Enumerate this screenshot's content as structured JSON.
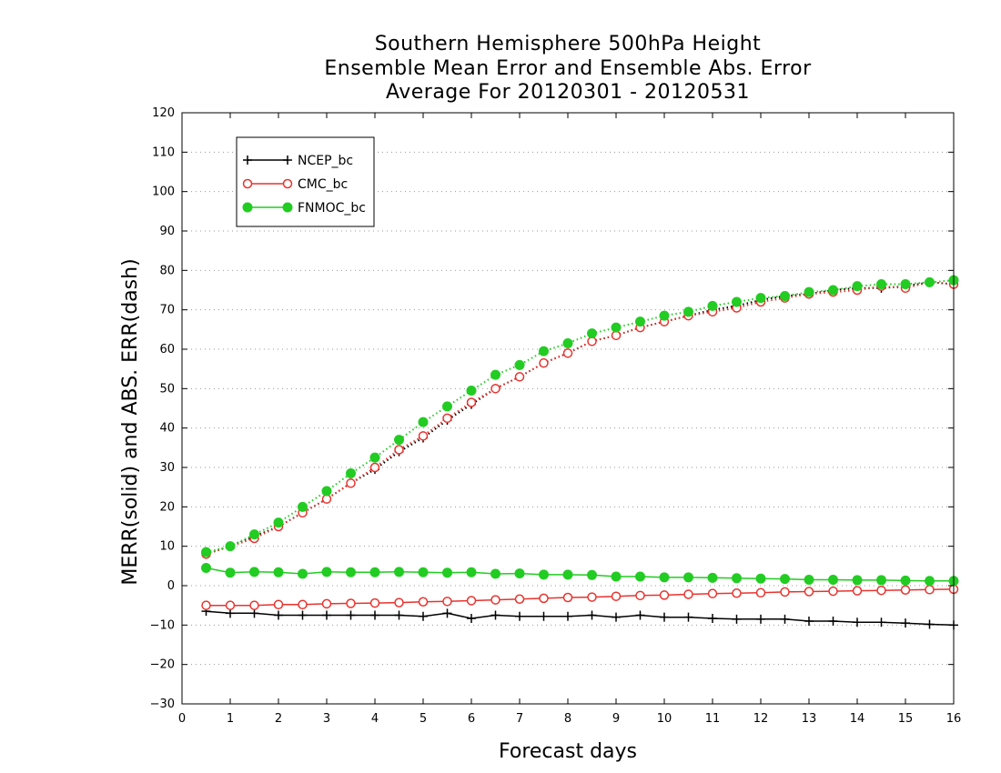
{
  "chart_data": {
    "type": "line",
    "title": [
      "Southern Hemisphere 500hPa Height",
      "Ensemble Mean Error and Ensemble Abs. Error",
      "Average For 20120301 - 20120531"
    ],
    "xlabel": "Forecast days",
    "ylabel": "MERR(solid) and ABS. ERR(dash)",
    "xlim": [
      0,
      16
    ],
    "ylim": [
      -30,
      120
    ],
    "xticks": [
      0,
      1,
      2,
      3,
      4,
      5,
      6,
      7,
      8,
      9,
      10,
      11,
      12,
      13,
      14,
      15,
      16
    ],
    "yticks": [
      -30,
      -20,
      -10,
      0,
      10,
      20,
      30,
      40,
      50,
      60,
      70,
      80,
      90,
      100,
      110,
      120
    ],
    "grid": "horizontal dotted",
    "legend_position": "top-left",
    "x": [
      0.5,
      1,
      1.5,
      2,
      2.5,
      3,
      3.5,
      4,
      4.5,
      5,
      5.5,
      6,
      6.5,
      7,
      7.5,
      8,
      8.5,
      9,
      9.5,
      10,
      10.5,
      11,
      11.5,
      12,
      12.5,
      13,
      13.5,
      14,
      14.5,
      15,
      15.5,
      16
    ],
    "series": [
      {
        "name": "NCEP_bc",
        "kind": "abs_err",
        "style": "dotted",
        "color": "#000000",
        "marker": "plus",
        "values": [
          8,
          10,
          12.5,
          15,
          18.5,
          22,
          26,
          29.5,
          34,
          37.5,
          42,
          46,
          50,
          53,
          56.5,
          59,
          62,
          63.5,
          65.5,
          67,
          68.5,
          70,
          71,
          72.5,
          73.5,
          74,
          75,
          75.5,
          75.5,
          76,
          77,
          76.5
        ]
      },
      {
        "name": "CMC_bc",
        "kind": "abs_err",
        "style": "dotted",
        "color": "#e8332e",
        "marker": "open-circle",
        "values": [
          8,
          10,
          12,
          15,
          18.5,
          22,
          26,
          30,
          34.5,
          38,
          42.5,
          46.5,
          50,
          53,
          56.5,
          59,
          62,
          63.5,
          65.5,
          67,
          68.5,
          69.5,
          70.5,
          72,
          73,
          74,
          74.5,
          75,
          76,
          75.5,
          77,
          76.5
        ]
      },
      {
        "name": "FNMOC_bc",
        "kind": "abs_err",
        "style": "dotted",
        "color": "#22cc22",
        "marker": "filled-circle",
        "values": [
          8.5,
          10,
          13,
          16,
          20,
          24,
          28.5,
          32.5,
          37,
          41.5,
          45.5,
          49.5,
          53.5,
          56,
          59.5,
          61.5,
          64,
          65.5,
          67,
          68.5,
          69.5,
          71,
          72,
          73,
          73.5,
          74.5,
          75,
          76,
          76.5,
          76.5,
          77,
          77.5
        ]
      },
      {
        "name": "NCEP_bc",
        "kind": "mean_err",
        "style": "solid",
        "color": "#000000",
        "marker": "plus",
        "values": [
          -6.5,
          -7,
          -7,
          -7.5,
          -7.5,
          -7.5,
          -7.5,
          -7.5,
          -7.5,
          -7.8,
          -7,
          -8.3,
          -7.5,
          -7.8,
          -7.8,
          -7.8,
          -7.5,
          -8,
          -7.5,
          -8,
          -8,
          -8.3,
          -8.5,
          -8.5,
          -8.5,
          -9,
          -9,
          -9.3,
          -9.3,
          -9.5,
          -9.8,
          -10
        ]
      },
      {
        "name": "CMC_bc",
        "kind": "mean_err",
        "style": "solid",
        "color": "#e8332e",
        "marker": "open-circle",
        "values": [
          -5,
          -5,
          -5,
          -4.8,
          -4.8,
          -4.6,
          -4.5,
          -4.4,
          -4.3,
          -4.1,
          -4,
          -3.8,
          -3.6,
          -3.4,
          -3.2,
          -3,
          -2.9,
          -2.7,
          -2.5,
          -2.4,
          -2.2,
          -2,
          -1.9,
          -1.8,
          -1.6,
          -1.5,
          -1.4,
          -1.3,
          -1.2,
          -1.1,
          -1,
          -0.9
        ]
      },
      {
        "name": "FNMOC_bc",
        "kind": "mean_err",
        "style": "solid",
        "color": "#22cc22",
        "marker": "filled-circle",
        "values": [
          4.5,
          3.3,
          3.5,
          3.4,
          3,
          3.5,
          3.4,
          3.4,
          3.5,
          3.4,
          3.3,
          3.4,
          3,
          3.1,
          2.8,
          2.8,
          2.7,
          2.3,
          2.3,
          2.1,
          2.1,
          2,
          1.9,
          1.8,
          1.7,
          1.5,
          1.5,
          1.4,
          1.4,
          1.3,
          1.2,
          1.2
        ]
      }
    ],
    "legend": [
      {
        "name": "NCEP_bc",
        "color": "#000000",
        "marker": "plus"
      },
      {
        "name": "CMC_bc",
        "color": "#e8332e",
        "marker": "open-circle"
      },
      {
        "name": "FNMOC_bc",
        "color": "#22cc22",
        "marker": "filled-circle"
      }
    ]
  }
}
